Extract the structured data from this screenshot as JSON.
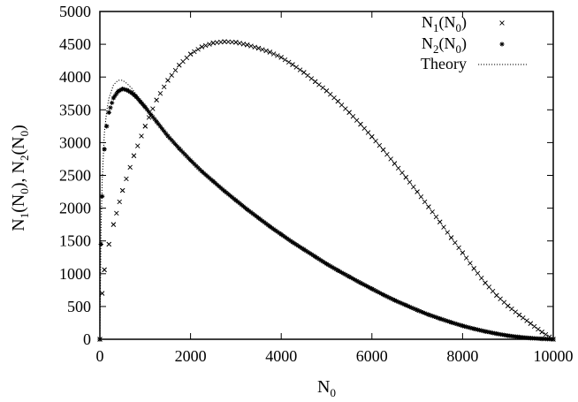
{
  "chart_data": {
    "type": "scatter",
    "title": "",
    "xlabel": {
      "base": "N",
      "sub": "0"
    },
    "ylabel": [
      {
        "base": "N",
        "sub": "1"
      },
      {
        "text": "("
      },
      {
        "base": "N",
        "sub": "0"
      },
      {
        "text": "), "
      },
      {
        "base": "N",
        "sub": "2"
      },
      {
        "text": "("
      },
      {
        "base": "N",
        "sub": "0"
      },
      {
        "text": ")"
      }
    ],
    "xlim": [
      0,
      10000
    ],
    "ylim": [
      0,
      5000
    ],
    "xticks": [
      "0",
      "2000",
      "4000",
      "6000",
      "8000",
      "10000"
    ],
    "yticks": [
      "0",
      "500",
      "1000",
      "1500",
      "2000",
      "2500",
      "3000",
      "3500",
      "4000",
      "4500",
      "5000"
    ],
    "grid": false,
    "legend_position": "top-right",
    "series": [
      {
        "name": [
          {
            "base": "N",
            "sub": "1"
          },
          {
            "text": "("
          },
          {
            "base": "N",
            "sub": "0"
          },
          {
            "text": ")"
          }
        ],
        "marker": "×",
        "x": [
          0,
          50,
          100,
          200,
          300,
          500,
          750,
          1000,
          1250,
          1500,
          1750,
          2000,
          2250,
          2500,
          2750,
          3000,
          3250,
          3500,
          3750,
          4000,
          4250,
          4500,
          4750,
          5000,
          5250,
          5500,
          5750,
          6000,
          6250,
          6500,
          6750,
          7000,
          7250,
          7500,
          7750,
          8000,
          8250,
          8500,
          8750,
          9000,
          9250,
          9500,
          9750,
          10000
        ],
        "y": [
          0,
          700,
          1060,
          1450,
          1750,
          2270,
          2800,
          3250,
          3650,
          3950,
          4180,
          4350,
          4460,
          4520,
          4540,
          4530,
          4490,
          4440,
          4380,
          4300,
          4190,
          4070,
          3930,
          3790,
          3630,
          3460,
          3280,
          3090,
          2890,
          2680,
          2470,
          2250,
          2020,
          1790,
          1550,
          1320,
          1080,
          860,
          670,
          510,
          370,
          240,
          110,
          0
        ]
      },
      {
        "name": [
          {
            "base": "N",
            "sub": "2"
          },
          {
            "text": "("
          },
          {
            "base": "N",
            "sub": "0"
          },
          {
            "text": ")"
          }
        ],
        "marker": "✱",
        "x": [
          0,
          25,
          50,
          100,
          150,
          200,
          300,
          400,
          500,
          600,
          700,
          800,
          900,
          1000,
          1250,
          1500,
          1750,
          2000,
          2250,
          2500,
          2750,
          3000,
          3250,
          3500,
          3750,
          4000,
          4250,
          4500,
          4750,
          5000,
          5250,
          5500,
          5750,
          6000,
          6250,
          6500,
          6750,
          7000,
          7250,
          7500,
          7750,
          8000,
          8250,
          8500,
          8750,
          9000,
          9250,
          9500,
          9750,
          10000
        ],
        "y": [
          0,
          1450,
          2180,
          2900,
          3250,
          3460,
          3680,
          3780,
          3820,
          3800,
          3760,
          3700,
          3620,
          3540,
          3320,
          3100,
          2910,
          2730,
          2560,
          2410,
          2260,
          2120,
          1980,
          1850,
          1720,
          1600,
          1480,
          1370,
          1260,
          1150,
          1050,
          955,
          860,
          770,
          680,
          595,
          520,
          445,
          375,
          315,
          258,
          205,
          160,
          120,
          85,
          55,
          34,
          18,
          7,
          0
        ]
      },
      {
        "name": [
          {
            "text": "Theory"
          }
        ],
        "marker": "dotted-line",
        "x": [
          0,
          25,
          50,
          100,
          150,
          200,
          300,
          400,
          500,
          600,
          700,
          800,
          900,
          1000
        ],
        "y": [
          0,
          1650,
          2400,
          3150,
          3480,
          3680,
          3880,
          3950,
          3950,
          3900,
          3830,
          3740,
          3640,
          3540
        ]
      }
    ]
  }
}
